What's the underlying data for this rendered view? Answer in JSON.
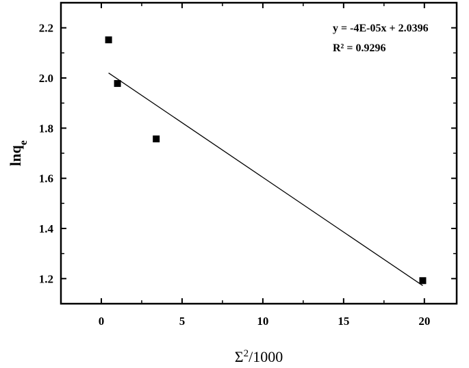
{
  "chart_data": {
    "type": "scatter",
    "title": "",
    "xlabel": "Σ²/1000",
    "ylabel": "lnqe",
    "xlim": [
      -2.5,
      22
    ],
    "ylim": [
      1.1,
      2.3
    ],
    "xticks": [
      0,
      5,
      10,
      15,
      20
    ],
    "yticks": [
      1.2,
      1.4,
      1.6,
      1.8,
      2.0,
      2.2
    ],
    "x_minor_step": 2.5,
    "y_minor_step": 0.1,
    "grid": false,
    "legend": "none",
    "series": [
      {
        "marker": "square",
        "color": "#000000",
        "points": [
          {
            "x": 0.45,
            "y": 2.152
          },
          {
            "x": 1.0,
            "y": 1.978
          },
          {
            "x": 3.4,
            "y": 1.757
          },
          {
            "x": 19.9,
            "y": 1.192
          }
        ]
      }
    ],
    "fit_line": {
      "x_start": 0.45,
      "y_start": 2.02,
      "x_end": 19.9,
      "y_end": 1.172,
      "color": "#000000"
    },
    "annotations": [
      {
        "text": "y = -4E-05x + 2.0396",
        "position": "top-right"
      },
      {
        "text": "R² = 0.9296",
        "position": "top-right"
      }
    ]
  }
}
